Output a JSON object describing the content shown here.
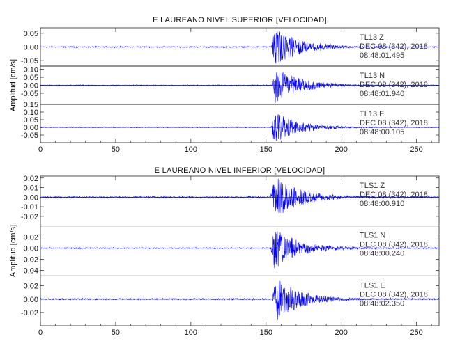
{
  "chart_data": [
    {
      "type": "line",
      "title": "E LAUREANO NIVEL SUPERIOR [VELOCIDAD]",
      "ylabel": "Amplitud [cm/s]",
      "xlim": [
        0,
        265
      ],
      "xticks": [
        "0",
        "50",
        "100",
        "150",
        "200",
        "250"
      ],
      "color": "#0000ff",
      "traces": [
        {
          "station": "TL13",
          "component": "Z",
          "date": "DEC 08 (342), 2018",
          "time": "08:48:01.495",
          "ylim": [
            -0.07,
            0.07
          ],
          "yticks": [
            "0.05",
            "0.00",
            "-0.05"
          ],
          "ytick_values": [
            0.05,
            0.0,
            -0.05
          ],
          "noise": 0.0015,
          "peak": 0.065,
          "onset": 153.5,
          "decay": 16
        },
        {
          "station": "TL13",
          "component": "N",
          "date": "DEC 08 (342), 2018",
          "time": "08:48:01.940",
          "ylim": [
            -0.12,
            0.12
          ],
          "yticks": [
            "0.10",
            "0.05",
            "0.00",
            "-0.05"
          ],
          "ytick_values": [
            0.1,
            0.05,
            0.0,
            -0.05
          ],
          "noise": 0.002,
          "peak": 0.1,
          "onset": 153.5,
          "decay": 17
        },
        {
          "station": "TL13",
          "component": "E",
          "date": "DEC 08 (342), 2018",
          "time": "08:48:00.105",
          "ylim": [
            -0.1,
            0.15
          ],
          "yticks": [
            "0.15",
            "0.10",
            "0.05",
            "0.00",
            "-0.05"
          ],
          "ytick_values": [
            0.15,
            0.1,
            0.05,
            0.0,
            -0.05
          ],
          "noise": 0.002,
          "peak": 0.09,
          "onset": 153,
          "decay": 16
        }
      ]
    },
    {
      "type": "line",
      "title": "E LAUREANO NIVEL INFERIOR [VELOCIDAD]",
      "ylabel": "Amplitud [cm/s]",
      "xlim": [
        0,
        265
      ],
      "xticks": [
        "0",
        "50",
        "100",
        "150",
        "200",
        "250"
      ],
      "color": "#0000ff",
      "traces": [
        {
          "station": "TLS1",
          "component": "Z",
          "date": "DEC 08 (342), 2018",
          "time": "08:48:00.910",
          "ylim": [
            -0.03,
            0.022
          ],
          "yticks": [
            "0.02",
            "0.01",
            "0.00",
            "-0.01",
            "-0.02"
          ],
          "ytick_values": [
            0.02,
            0.01,
            0.0,
            -0.01,
            -0.02
          ],
          "noise": 0.0006,
          "peak": 0.02,
          "onset": 153,
          "decay": 18
        },
        {
          "station": "TLS1",
          "component": "N",
          "date": "DEC 08 (342), 2018",
          "time": "08:48:00.240",
          "ylim": [
            -0.05,
            0.04
          ],
          "yticks": [
            "0.02",
            "0.00",
            "-0.02",
            "-0.04"
          ],
          "ytick_values": [
            0.02,
            0.0,
            -0.02,
            -0.04
          ],
          "noise": 0.0008,
          "peak": 0.032,
          "onset": 153,
          "decay": 17
        },
        {
          "station": "TLS1",
          "component": "E",
          "date": "DEC 08 (342), 2018",
          "time": "08:48:02.350",
          "ylim": [
            -0.04,
            0.035
          ],
          "yticks": [
            "0.02",
            "0.00",
            "-0.02"
          ],
          "ytick_values": [
            0.02,
            0.0,
            -0.02
          ],
          "noise": 0.0008,
          "peak": 0.03,
          "onset": 154,
          "decay": 16
        }
      ]
    }
  ]
}
